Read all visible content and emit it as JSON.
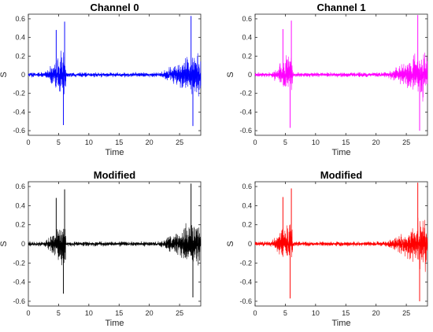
{
  "chart_data": [
    {
      "type": "line",
      "title": "Channel 0",
      "xlabel": "Time",
      "ylabel": "S",
      "xlim": [
        0,
        28.5
      ],
      "ylim": [
        -0.65,
        0.65
      ],
      "xticks": [
        "0",
        "5",
        "10",
        "15",
        "20",
        "25"
      ],
      "yticks": [
        "-0.6",
        "-0.4",
        "-0.2",
        "0",
        "0.2",
        "0.4",
        "0.6"
      ],
      "series": [
        {
          "color": "#0000ff",
          "envelope_peaks": [
            {
              "time": 4.6,
              "amplitude": 0.48
            },
            {
              "time": 5.8,
              "amplitude": -0.54
            },
            {
              "time": 6.0,
              "amplitude": 0.57
            },
            {
              "time": 26.9,
              "amplitude": 0.63
            },
            {
              "time": 27.2,
              "amplitude": -0.55
            }
          ],
          "bursts": [
            {
              "start": 2.5,
              "end": 6.2,
              "peak": 0.57
            },
            {
              "start": 21.5,
              "end": 28.5,
              "peak": 0.63
            }
          ],
          "noise_floor": 0.03
        }
      ]
    },
    {
      "type": "line",
      "title": "Channel 1",
      "xlabel": "Time",
      "ylabel": "S",
      "xlim": [
        0,
        28.5
      ],
      "ylim": [
        -0.65,
        0.65
      ],
      "xticks": [
        "0",
        "5",
        "10",
        "15",
        "20",
        "25"
      ],
      "yticks": [
        "-0.6",
        "-0.4",
        "-0.2",
        "0",
        "0.2",
        "0.4",
        "0.6"
      ],
      "series": [
        {
          "color": "#ff00ff",
          "envelope_peaks": [
            {
              "time": 4.6,
              "amplitude": 0.49
            },
            {
              "time": 5.8,
              "amplitude": -0.57
            },
            {
              "time": 6.0,
              "amplitude": 0.58
            },
            {
              "time": 26.9,
              "amplitude": 0.64
            },
            {
              "time": 27.2,
              "amplitude": -0.6
            }
          ],
          "bursts": [
            {
              "start": 2.5,
              "end": 6.2,
              "peak": 0.58
            },
            {
              "start": 21.5,
              "end": 28.5,
              "peak": 0.64
            }
          ],
          "noise_floor": 0.03
        }
      ]
    },
    {
      "type": "line",
      "title": "Modified",
      "xlabel": "Time",
      "ylabel": "S",
      "xlim": [
        0,
        28.5
      ],
      "ylim": [
        -0.65,
        0.65
      ],
      "xticks": [
        "0",
        "5",
        "10",
        "15",
        "20",
        "25"
      ],
      "yticks": [
        "-0.6",
        "-0.4",
        "-0.2",
        "0",
        "0.2",
        "0.4",
        "0.6"
      ],
      "series": [
        {
          "color": "#000000",
          "envelope_peaks": [
            {
              "time": 4.6,
              "amplitude": 0.48
            },
            {
              "time": 5.8,
              "amplitude": -0.52
            },
            {
              "time": 6.0,
              "amplitude": 0.57
            },
            {
              "time": 26.9,
              "amplitude": 0.63
            },
            {
              "time": 27.2,
              "amplitude": -0.56
            }
          ],
          "bursts": [
            {
              "start": 2.5,
              "end": 6.2,
              "peak": 0.57
            },
            {
              "start": 21.5,
              "end": 28.5,
              "peak": 0.63
            }
          ],
          "noise_floor": 0.03
        }
      ]
    },
    {
      "type": "line",
      "title": "Modified",
      "xlabel": "Time",
      "ylabel": "S",
      "xlim": [
        0,
        28.5
      ],
      "ylim": [
        -0.65,
        0.65
      ],
      "xticks": [
        "0",
        "5",
        "10",
        "15",
        "20",
        "25"
      ],
      "yticks": [
        "-0.6",
        "-0.4",
        "-0.2",
        "0",
        "0.2",
        "0.4",
        "0.6"
      ],
      "series": [
        {
          "color": "#ff0000",
          "envelope_peaks": [
            {
              "time": 4.6,
              "amplitude": 0.49
            },
            {
              "time": 5.8,
              "amplitude": -0.57
            },
            {
              "time": 6.0,
              "amplitude": 0.58
            },
            {
              "time": 26.9,
              "amplitude": 0.64
            },
            {
              "time": 27.2,
              "amplitude": -0.6
            }
          ],
          "bursts": [
            {
              "start": 2.5,
              "end": 6.2,
              "peak": 0.58
            },
            {
              "start": 21.5,
              "end": 28.5,
              "peak": 0.64
            }
          ],
          "noise_floor": 0.03
        }
      ]
    }
  ]
}
